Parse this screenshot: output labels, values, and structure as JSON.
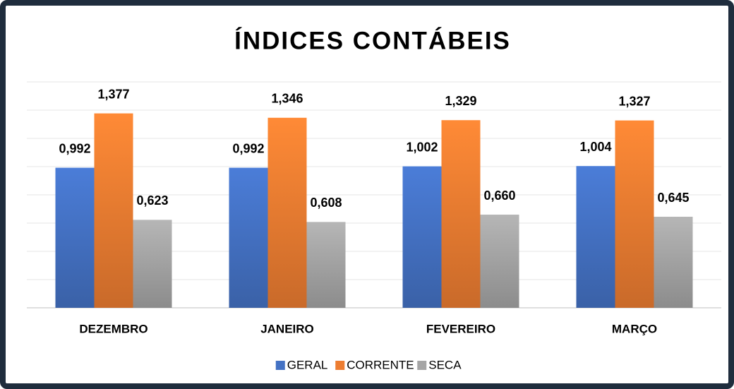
{
  "chart_data": {
    "type": "bar",
    "title": "ÍNDICES CONTÁBEIS",
    "categories": [
      "DEZEMBRO",
      "JANEIRO",
      "FEVEREIRO",
      "MARÇO"
    ],
    "series": [
      {
        "name": "GERAL",
        "color": "#4472c4",
        "values": [
          0.992,
          0.992,
          1.002,
          1.004
        ],
        "value_labels": [
          "0,992",
          "0,992",
          "1,002",
          "1,004"
        ]
      },
      {
        "name": "CORRENTE",
        "color": "#ed7d31",
        "values": [
          1.377,
          1.346,
          1.329,
          1.327
        ],
        "value_labels": [
          "1,377",
          "1,346",
          "1,329",
          "1,327"
        ]
      },
      {
        "name": "SECA",
        "color": "#a5a5a5",
        "values": [
          0.623,
          0.608,
          0.66,
          0.645
        ],
        "value_labels": [
          "0,623",
          "0,608",
          "0,660",
          "0,645"
        ]
      }
    ],
    "ylim": [
      0,
      1.6
    ],
    "yticks": [
      0,
      0.2,
      0.4,
      0.6,
      0.8,
      1,
      1.2,
      1.4,
      1.6
    ],
    "grid": true,
    "legend": "bottom"
  }
}
